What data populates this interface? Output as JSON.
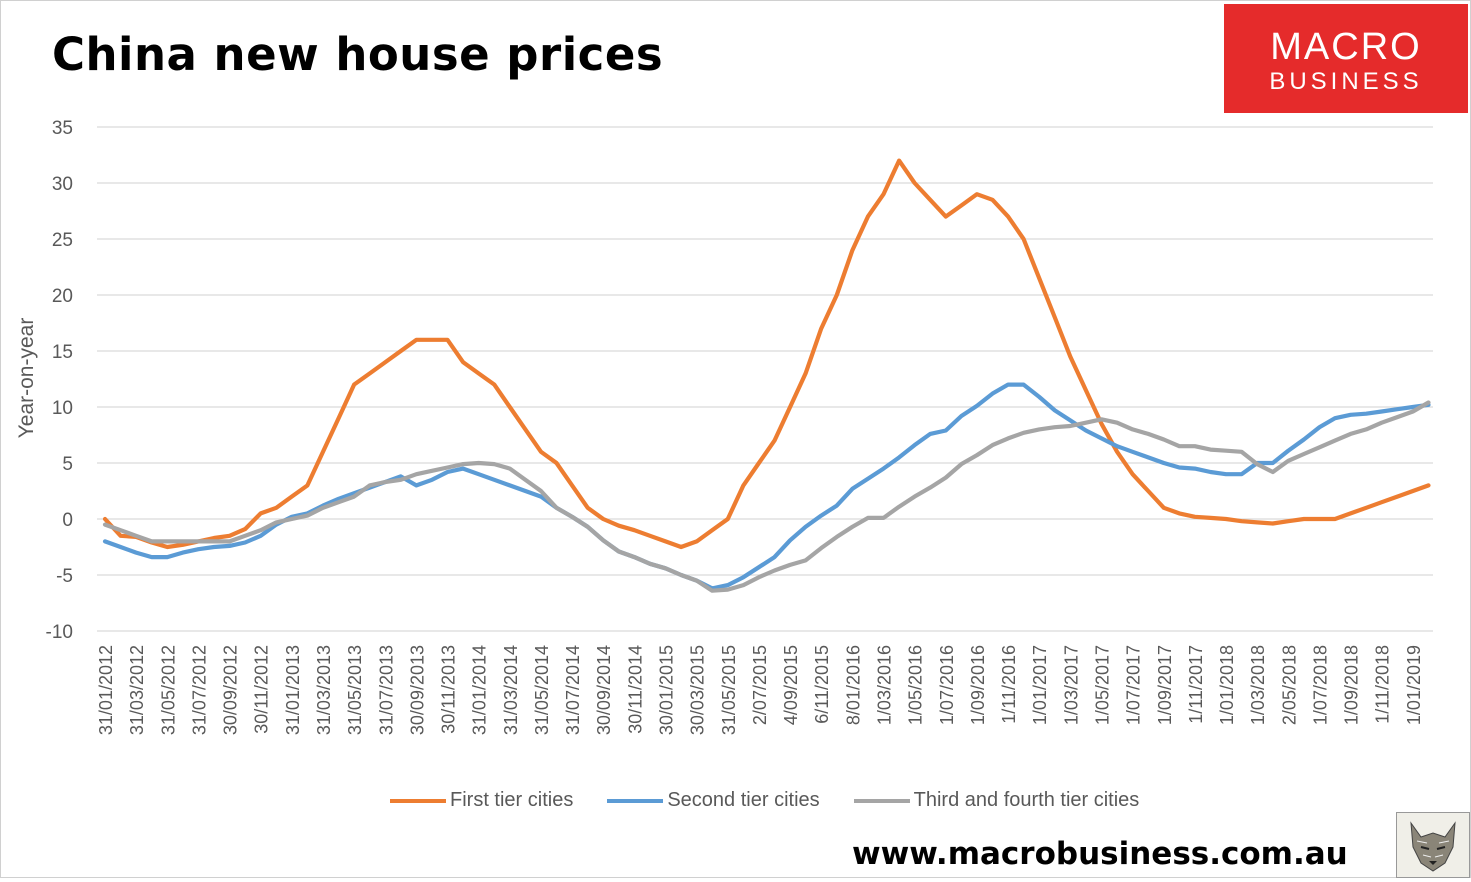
{
  "title": "China new house prices",
  "logo": {
    "line1": "MACRO",
    "line2": "BUSINESS",
    "color": "#e52b2b"
  },
  "url": "www.macrobusiness.com.au",
  "chart_data": {
    "type": "line",
    "ylabel": "Year-on-year",
    "xlabel": "",
    "ylim": [
      -10,
      35
    ],
    "yticks": [
      35,
      30,
      25,
      20,
      15,
      10,
      5,
      0,
      -5,
      -10
    ],
    "grid": true,
    "legend_position": "bottom",
    "x_tick_labels": [
      "31/01/2012",
      "31/03/2012",
      "31/05/2012",
      "31/07/2012",
      "30/09/2012",
      "30/11/2012",
      "31/01/2013",
      "31/03/2013",
      "31/05/2013",
      "31/07/2013",
      "30/09/2013",
      "30/11/2013",
      "31/01/2014",
      "31/03/2014",
      "31/05/2014",
      "31/07/2014",
      "30/09/2014",
      "30/11/2014",
      "30/01/2015",
      "30/03/2015",
      "31/05/2015",
      "2/07/2015",
      "4/09/2015",
      "6/11/2015",
      "8/01/2016",
      "1/03/2016",
      "1/05/2016",
      "1/07/2016",
      "1/09/2016",
      "1/11/2016",
      "1/01/2017",
      "1/03/2017",
      "1/05/2017",
      "1/07/2017",
      "1/09/2017",
      "1/11/2017",
      "1/01/2018",
      "1/03/2018",
      "2/05/2018",
      "1/07/2018",
      "1/09/2018",
      "1/11/2018",
      "1/01/2019"
    ],
    "series": [
      {
        "name": "First tier cities",
        "color": "#ED7D31",
        "values": [
          0,
          -1.5,
          -1.6,
          -2.1,
          -2.5,
          -2.3,
          -2,
          -1.7,
          -1.5,
          -0.9,
          0.5,
          1,
          2,
          3,
          6,
          9,
          12,
          13,
          14,
          15,
          16,
          16,
          16,
          14,
          13,
          12,
          10,
          8,
          6,
          5,
          3,
          1,
          0,
          -0.6,
          -1,
          -1.5,
          -2,
          -2.5,
          -2,
          -1,
          0,
          3,
          5,
          7,
          10,
          13,
          17,
          20,
          24,
          27,
          29,
          32,
          30,
          28.5,
          27,
          28,
          29,
          28.5,
          27,
          25,
          21.5,
          18,
          14.5,
          11.5,
          8.5,
          6,
          4,
          2.5,
          1,
          0.5,
          0.2,
          0.1,
          0,
          -0.2,
          -0.3,
          -0.4,
          -0.2,
          0,
          0,
          0,
          0.5,
          1,
          1.5,
          2,
          2.5,
          3
        ]
      },
      {
        "name": "Second tier cities",
        "color": "#5B9BD5",
        "values": [
          -2,
          -2.5,
          -3,
          -3.4,
          -3.4,
          -3,
          -2.7,
          -2.5,
          -2.4,
          -2.1,
          -1.5,
          -0.5,
          0.2,
          0.5,
          1.2,
          1.8,
          2.3,
          2.8,
          3.3,
          3.8,
          3,
          3.5,
          4.2,
          4.5,
          4,
          3.5,
          3,
          2.5,
          2,
          1,
          0.2,
          -0.7,
          -1.9,
          -2.9,
          -3.4,
          -4,
          -4.4,
          -5,
          -5.5,
          -6.2,
          -5.9,
          -5.2,
          -4.3,
          -3.4,
          -1.9,
          -0.7,
          0.3,
          1.2,
          2.7,
          3.6,
          4.5,
          5.5,
          6.6,
          7.6,
          7.9,
          9.2,
          10.1,
          11.2,
          12,
          12,
          10.9,
          9.7,
          8.8,
          7.9,
          7.2,
          6.5,
          6,
          5.5,
          5,
          4.6,
          4.5,
          4.2,
          4,
          4,
          5,
          5,
          6.1,
          7.1,
          8.2,
          9,
          9.3,
          9.4,
          9.6,
          9.8,
          10,
          10.2
        ]
      },
      {
        "name": "Third and fourth tier cities",
        "color": "#A5A5A5",
        "values": [
          -0.5,
          -1,
          -1.5,
          -2,
          -2,
          -2,
          -2,
          -2,
          -2,
          -1.5,
          -1,
          -0.3,
          0,
          0.3,
          1,
          1.5,
          2,
          3,
          3.3,
          3.5,
          4,
          4.3,
          4.6,
          4.9,
          5,
          4.9,
          4.5,
          3.5,
          2.5,
          1,
          0.2,
          -0.7,
          -1.9,
          -2.9,
          -3.4,
          -4,
          -4.4,
          -5,
          -5.5,
          -6.4,
          -6.3,
          -5.9,
          -5.2,
          -4.6,
          -4.1,
          -3.7,
          -2.6,
          -1.6,
          -0.7,
          0.1,
          0.1,
          1.1,
          2,
          2.8,
          3.7,
          4.9,
          5.7,
          6.6,
          7.2,
          7.7,
          8,
          8.2,
          8.3,
          8.6,
          8.9,
          8.6,
          8,
          7.6,
          7.1,
          6.5,
          6.5,
          6.2,
          6.1,
          6,
          4.9,
          4.2,
          5.2,
          5.8,
          6.4,
          7,
          7.6,
          8,
          8.6,
          9.1,
          9.6,
          10.4
        ]
      }
    ]
  }
}
